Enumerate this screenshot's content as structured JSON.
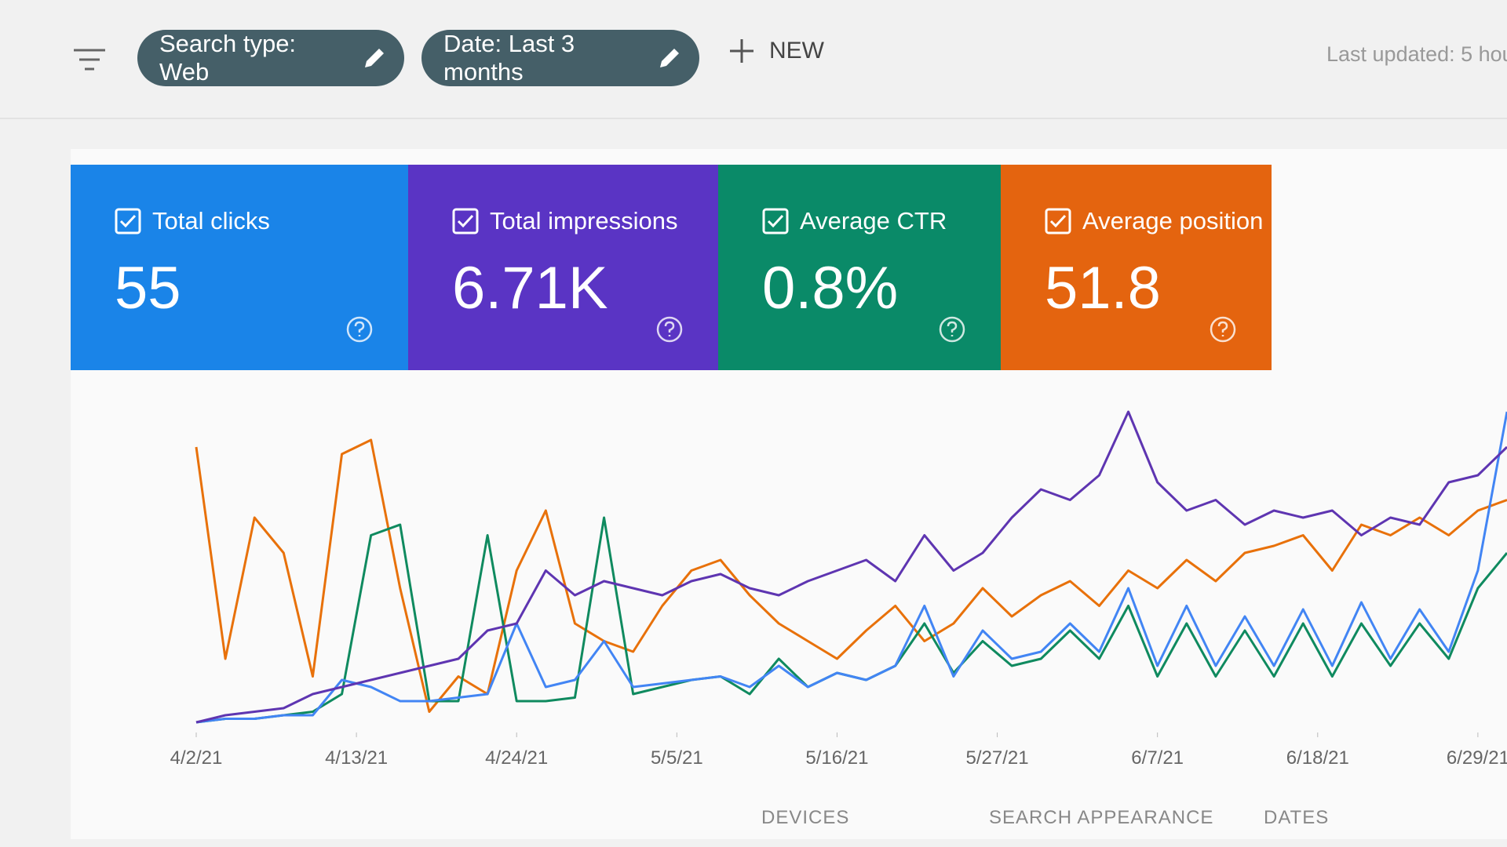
{
  "toolbar": {
    "chips": [
      "Search type: Web",
      "Date: Last 3 months"
    ],
    "new_button": "NEW",
    "last_updated": "Last updated: 5 hou"
  },
  "cards": [
    {
      "label": "Total clicks",
      "value": "55",
      "color": "#1a84e8"
    },
    {
      "label": "Total impressions",
      "value": "6.71K",
      "color": "#5a34c4"
    },
    {
      "label": "Average CTR",
      "value": "0.8%",
      "color": "#0a8a68"
    },
    {
      "label": "Average position",
      "value": "51.8",
      "color": "#e4640f"
    }
  ],
  "chart_data": {
    "type": "line",
    "x": [
      0,
      2,
      4,
      6,
      8,
      10,
      12,
      14,
      16,
      18,
      20,
      22,
      24,
      26,
      28,
      30,
      32,
      34,
      36,
      38,
      40,
      42,
      44,
      46,
      48,
      50,
      52,
      54,
      56,
      58,
      60,
      62,
      64,
      66,
      68,
      70,
      72,
      74,
      76,
      78,
      80,
      82,
      84,
      86,
      88,
      90
    ],
    "xlim": [
      0,
      90
    ],
    "xticks": [
      {
        "value": 0,
        "label": "4/2/21"
      },
      {
        "value": 11,
        "label": "4/13/21"
      },
      {
        "value": 22,
        "label": "4/24/21"
      },
      {
        "value": 33,
        "label": "5/5/21"
      },
      {
        "value": 44,
        "label": "5/16/21"
      },
      {
        "value": 55,
        "label": "5/27/21"
      },
      {
        "value": 66,
        "label": "6/7/21"
      },
      {
        "value": 77,
        "label": "6/18/21"
      },
      {
        "value": 88,
        "label": "6/29/21"
      }
    ],
    "ylim": [
      0,
      100
    ],
    "series": [
      {
        "color": "#e8710a",
        "values": [
          80,
          20,
          60,
          50,
          15,
          78,
          82,
          40,
          5,
          15,
          10,
          45,
          62,
          30,
          25,
          22,
          35,
          45,
          48,
          38,
          30,
          25,
          20,
          28,
          35,
          25,
          30,
          40,
          32,
          38,
          42,
          35,
          45,
          40,
          48,
          42,
          50,
          52,
          55,
          45,
          58,
          55,
          60,
          55,
          62,
          65
        ]
      },
      {
        "color": "#0f8a5f",
        "values": [
          2,
          3,
          3,
          4,
          5,
          10,
          55,
          58,
          8,
          8,
          55,
          8,
          8,
          9,
          60,
          10,
          12,
          14,
          15,
          10,
          20,
          12,
          16,
          14,
          18,
          30,
          16,
          25,
          18,
          20,
          28,
          20,
          35,
          15,
          30,
          15,
          28,
          15,
          30,
          15,
          30,
          18,
          30,
          20,
          40,
          50
        ]
      },
      {
        "color": "#4285f4",
        "values": [
          2,
          3,
          3,
          4,
          4,
          14,
          12,
          8,
          8,
          9,
          10,
          30,
          12,
          14,
          25,
          12,
          13,
          14,
          15,
          12,
          18,
          12,
          16,
          14,
          18,
          35,
          15,
          28,
          20,
          22,
          30,
          22,
          40,
          18,
          35,
          18,
          32,
          18,
          34,
          18,
          36,
          20,
          34,
          22,
          45,
          90
        ]
      },
      {
        "color": "#5e35b1",
        "values": [
          2,
          4,
          5,
          6,
          10,
          12,
          14,
          16,
          18,
          20,
          28,
          30,
          45,
          38,
          42,
          40,
          38,
          42,
          44,
          40,
          38,
          42,
          45,
          48,
          42,
          55,
          45,
          50,
          60,
          68,
          65,
          72,
          90,
          70,
          62,
          65,
          58,
          62,
          60,
          62,
          55,
          60,
          58,
          70,
          72,
          80
        ]
      }
    ]
  },
  "tabs": [
    "DEVICES",
    "SEARCH APPEARANCE",
    "DATES"
  ]
}
